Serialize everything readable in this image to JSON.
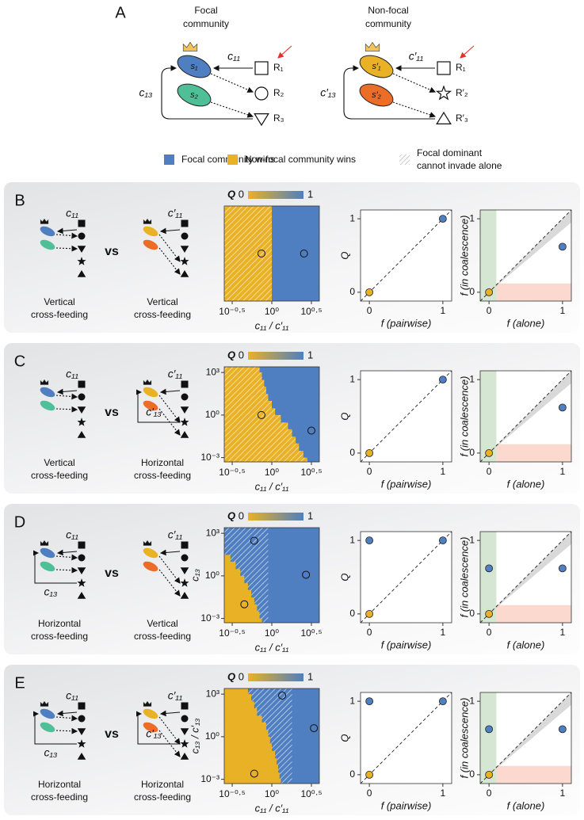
{
  "panel_a": {
    "label": "A",
    "communities": [
      {
        "title": [
          "Focal",
          "community"
        ],
        "species": [
          "s₁",
          "s₂"
        ],
        "resources": [
          "R₁",
          "R₂",
          "R₃"
        ],
        "uptake": "c₁₁",
        "cross": "c₁₃"
      },
      {
        "title": [
          "Non-focal",
          "community"
        ],
        "species": [
          "s′₁",
          "s′₂"
        ],
        "resources": [
          "R₁",
          "R′₂",
          "R′₃"
        ],
        "uptake": "c′₁₁",
        "cross": "c′₁₃"
      }
    ]
  },
  "legend": {
    "items": [
      {
        "lines": [
          "Focal community wins"
        ],
        "color": "#4f7fc0"
      },
      {
        "lines": [
          "Non-focal community wins"
        ],
        "color": "#e9b125"
      },
      {
        "lines": [
          "Focal dominant",
          "cannot invade alone"
        ],
        "color": "hatch"
      }
    ]
  },
  "rows": [
    {
      "label": "B",
      "vs": "vs",
      "left": {
        "caption": [
          "Vertical",
          "cross-feeding"
        ],
        "uptake": "c₁₁"
      },
      "right": {
        "caption": [
          "Vertical",
          "cross-feeding"
        ],
        "uptake": "c′₁₁"
      }
    },
    {
      "label": "C",
      "vs": "vs",
      "left": {
        "caption": [
          "Vertical",
          "cross-feeding"
        ],
        "uptake": "c₁₁"
      },
      "right": {
        "caption": [
          "Horizontal",
          "cross-feeding"
        ],
        "uptake": "c′₁₁",
        "cross": "c′₁₃"
      }
    },
    {
      "label": "D",
      "vs": "vs",
      "left": {
        "caption": [
          "Horizontal",
          "cross-feeding"
        ],
        "uptake": "c₁₁",
        "cross": "c₁₃"
      },
      "right": {
        "caption": [
          "Vertical",
          "cross-feeding"
        ],
        "uptake": "c′₁₁"
      }
    },
    {
      "label": "E",
      "vs": "vs",
      "left": {
        "caption": [
          "Horizontal",
          "cross-feeding"
        ],
        "uptake": "c₁₁",
        "cross": "c₁₃"
      },
      "right": {
        "caption": [
          "Horizontal",
          "cross-feeding"
        ],
        "uptake": "c′₁₁",
        "cross": "c′₁₃"
      }
    }
  ],
  "chart_data": [
    {
      "type": "heatmap",
      "colorbar_label": "Q",
      "colorbar_ticks": [
        0,
        1
      ],
      "low_color": "#e9b125",
      "high_color": "#4f7fc0",
      "xlabel": "c₁₁ / c′₁₁",
      "xlog": true,
      "xlim": [
        0.251,
        3.98
      ],
      "xticks": [
        {
          "value": 0.3162,
          "label": "10⁻⁰·⁵"
        },
        {
          "value": 1,
          "label": "10⁰"
        },
        {
          "value": 3.162,
          "label": "10⁰·⁵"
        }
      ],
      "ylog": false,
      "ylim": [
        0,
        1
      ],
      "band_edges": [
        0,
        1
      ],
      "yellow_edge": [
        1
      ],
      "hatched": "yellow",
      "points": {
        "x": [
          0.74,
          2.55
        ],
        "y": [
          0.5,
          0.5
        ]
      }
    },
    {
      "type": "scatter",
      "xlabel": "f (pairwise)",
      "ylabel": "Q",
      "xlim": [
        -0.12,
        1.12
      ],
      "ylim": [
        -0.12,
        1.12
      ],
      "xticks": [
        0,
        1
      ],
      "yticks": [
        0,
        1
      ],
      "diagonal": true,
      "shading": false,
      "points": {
        "x": [
          0,
          1
        ],
        "y": [
          0,
          1
        ],
        "colors": [
          "#e9b125",
          "#4f7fc0"
        ]
      }
    },
    {
      "type": "scatter",
      "xlabel": "f (alone)",
      "ylabel": "f (in coalescence)",
      "xlim": [
        -0.12,
        1.12
      ],
      "ylim": [
        -0.12,
        1.12
      ],
      "xticks": [
        0,
        1
      ],
      "yticks": [
        0,
        1
      ],
      "diagonal": true,
      "shading": true,
      "points": {
        "x": [
          0,
          1
        ],
        "y": [
          0,
          0.62
        ],
        "colors": [
          "#e9b125",
          "#4f7fc0"
        ]
      }
    },
    {
      "type": "heatmap",
      "colorbar_label": "Q",
      "colorbar_ticks": [
        0,
        1
      ],
      "low_color": "#e9b125",
      "high_color": "#4f7fc0",
      "xlabel": "c₁₁ / c′₁₁",
      "xlog": true,
      "xlim": [
        0.251,
        3.98
      ],
      "xticks": [
        {
          "value": 0.3162,
          "label": "10⁻⁰·⁵"
        },
        {
          "value": 1,
          "label": "10⁰"
        },
        {
          "value": 3.162,
          "label": "10⁰·⁵"
        }
      ],
      "ylog": true,
      "ylim": [
        0.0005,
        2500
      ],
      "yticks": [
        {
          "value": 0.001,
          "label": "10⁻³"
        },
        {
          "value": 1,
          "label": "10⁰"
        },
        {
          "value": 1000,
          "label": "10³"
        }
      ],
      "band_edges": [
        0.0005,
        0.001,
        0.003,
        0.01,
        0.03,
        0.1,
        0.3,
        1,
        3,
        10,
        30,
        100,
        300,
        1000,
        2500
      ],
      "yellow_edge": [
        2.8,
        2.5,
        2.2,
        2,
        1.8,
        1.6,
        1.3,
        1.1,
        1,
        0.9,
        0.85,
        0.8,
        0.75,
        0.7
      ],
      "hatched": "yellow",
      "points": {
        "x": [
          0.74,
          3.16
        ],
        "y": [
          1,
          0.08
        ]
      }
    },
    {
      "type": "scatter",
      "xlabel": "f (pairwise)",
      "ylabel": "Q",
      "xlim": [
        -0.12,
        1.12
      ],
      "ylim": [
        -0.12,
        1.12
      ],
      "xticks": [
        0,
        1
      ],
      "yticks": [
        0,
        1
      ],
      "diagonal": true,
      "shading": false,
      "points": {
        "x": [
          0,
          1
        ],
        "y": [
          0,
          1
        ],
        "colors": [
          "#e9b125",
          "#4f7fc0"
        ]
      }
    },
    {
      "type": "scatter",
      "xlabel": "f (alone)",
      "ylabel": "f (in coalescence)",
      "xlim": [
        -0.12,
        1.12
      ],
      "ylim": [
        -0.12,
        1.12
      ],
      "xticks": [
        0,
        1
      ],
      "yticks": [
        0,
        1
      ],
      "diagonal": true,
      "shading": true,
      "points": {
        "x": [
          0,
          1
        ],
        "y": [
          0,
          0.62
        ],
        "colors": [
          "#e9b125",
          "#4f7fc0"
        ]
      }
    },
    {
      "type": "heatmap",
      "colorbar_label": "Q",
      "colorbar_ticks": [
        0,
        1
      ],
      "low_color": "#e9b125",
      "high_color": "#4f7fc0",
      "xlabel": "c₁₁ / c′₁₁",
      "ylabel": "c₁₃",
      "xlog": true,
      "xlim": [
        0.251,
        3.98
      ],
      "xticks": [
        {
          "value": 0.3162,
          "label": "10⁻⁰·⁵"
        },
        {
          "value": 1,
          "label": "10⁰"
        },
        {
          "value": 3.162,
          "label": "10⁰·⁵"
        }
      ],
      "ylog": true,
      "ylim": [
        0.0005,
        2500
      ],
      "yticks": [
        {
          "value": 0.001,
          "label": "10⁻³"
        },
        {
          "value": 1,
          "label": "10⁰"
        },
        {
          "value": 1000,
          "label": "10³"
        }
      ],
      "band_edges": [
        0.0005,
        0.001,
        0.003,
        0.01,
        0.03,
        0.1,
        0.3,
        1,
        3,
        10,
        30,
        100,
        300,
        1000,
        2500
      ],
      "yellow_edge": [
        0.75,
        0.7,
        0.65,
        0.6,
        0.55,
        0.5,
        0.45,
        0.4,
        0.35,
        0.3,
        0.251,
        0.251,
        0.251,
        0.251
      ],
      "hatched": "blue",
      "hatch_edge": [
        0.9,
        0.9,
        0.9,
        0.9,
        0.9,
        0.9,
        0.9,
        0.9,
        0.9,
        0.9,
        0.9,
        0.9,
        0.9,
        0.9
      ],
      "points": {
        "x": [
          0.6,
          2.7,
          0.45
        ],
        "y": [
          300,
          1.2,
          0.01
        ]
      }
    },
    {
      "type": "scatter",
      "xlabel": "f (pairwise)",
      "ylabel": "Q",
      "xlim": [
        -0.12,
        1.12
      ],
      "ylim": [
        -0.12,
        1.12
      ],
      "xticks": [
        0,
        1
      ],
      "yticks": [
        0,
        1
      ],
      "diagonal": true,
      "shading": false,
      "points": {
        "x": [
          0,
          0,
          1
        ],
        "y": [
          0,
          1,
          1
        ],
        "colors": [
          "#e9b125",
          "#4f7fc0",
          "#4f7fc0"
        ]
      }
    },
    {
      "type": "scatter",
      "xlabel": "f (alone)",
      "ylabel": "f (in coalescence)",
      "xlim": [
        -0.12,
        1.12
      ],
      "ylim": [
        -0.12,
        1.12
      ],
      "xticks": [
        0,
        1
      ],
      "yticks": [
        0,
        1
      ],
      "diagonal": true,
      "shading": true,
      "points": {
        "x": [
          0,
          0,
          1
        ],
        "y": [
          0,
          0.62,
          0.62
        ],
        "colors": [
          "#e9b125",
          "#4f7fc0",
          "#4f7fc0"
        ]
      }
    },
    {
      "type": "heatmap",
      "colorbar_label": "Q",
      "colorbar_ticks": [
        0,
        1
      ],
      "low_color": "#e9b125",
      "high_color": "#4f7fc0",
      "xlabel": "c₁₁ / c′₁₁",
      "ylabel": "c₁₃ / c′₁₃",
      "xlog": true,
      "xlim": [
        0.251,
        3.98
      ],
      "xticks": [
        {
          "value": 0.3162,
          "label": "10⁻⁰·⁵"
        },
        {
          "value": 1,
          "label": "10⁰"
        },
        {
          "value": 3.162,
          "label": "10⁰·⁵"
        }
      ],
      "ylog": true,
      "ylim": [
        0.0005,
        2500
      ],
      "yticks": [
        {
          "value": 0.001,
          "label": "10⁻³"
        },
        {
          "value": 1,
          "label": "10⁰"
        },
        {
          "value": 1000,
          "label": "10³"
        }
      ],
      "band_edges": [
        0.0005,
        0.001,
        0.003,
        0.01,
        0.03,
        0.1,
        0.3,
        1,
        3,
        10,
        30,
        100,
        300,
        1000,
        2500
      ],
      "yellow_edge": [
        1.3,
        1.25,
        1.2,
        1.15,
        1.1,
        1.0,
        0.95,
        0.9,
        0.85,
        0.75,
        0.65,
        0.6,
        0.55,
        0.5
      ],
      "hatched": "blue",
      "hatch_edge": [
        1.8,
        1.8,
        1.8,
        1.8,
        1.8,
        1.8,
        1.8,
        1.8,
        1.8,
        1.8,
        1.8,
        1.8,
        1.8,
        1.8
      ],
      "points": {
        "x": [
          1.35,
          3.4,
          0.6
        ],
        "y": [
          800,
          4,
          0.0025
        ]
      }
    },
    {
      "type": "scatter",
      "xlabel": "f (pairwise)",
      "ylabel": "Q",
      "xlim": [
        -0.12,
        1.12
      ],
      "ylim": [
        -0.12,
        1.12
      ],
      "xticks": [
        0,
        1
      ],
      "yticks": [
        0,
        1
      ],
      "diagonal": true,
      "shading": false,
      "points": {
        "x": [
          0,
          0,
          1
        ],
        "y": [
          0,
          1,
          1
        ],
        "colors": [
          "#e9b125",
          "#4f7fc0",
          "#4f7fc0"
        ]
      }
    },
    {
      "type": "scatter",
      "xlabel": "f (alone)",
      "ylabel": "f (in coalescence)",
      "xlim": [
        -0.12,
        1.12
      ],
      "ylim": [
        -0.12,
        1.12
      ],
      "xticks": [
        0,
        1
      ],
      "yticks": [
        0,
        1
      ],
      "diagonal": true,
      "shading": true,
      "points": {
        "x": [
          0,
          0,
          1
        ],
        "y": [
          0,
          0.62,
          0.62
        ],
        "colors": [
          "#e9b125",
          "#4f7fc0",
          "#4f7fc0"
        ]
      }
    }
  ]
}
